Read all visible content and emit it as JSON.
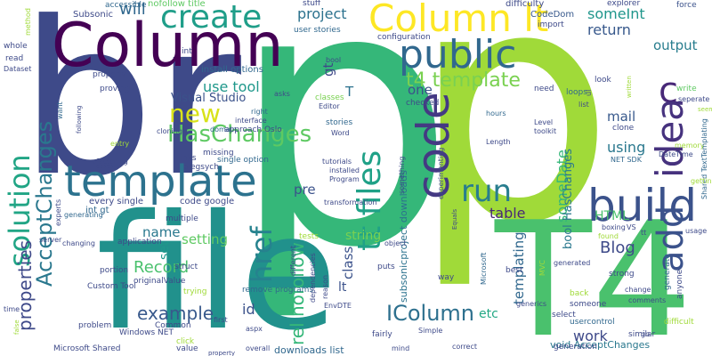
{
  "words": [
    {
      "text": "p",
      "color": "#35b779"
    },
    {
      "text": "p",
      "color": "#a0da39"
    },
    {
      "text": "br",
      "color": "#3e4a89"
    },
    {
      "text": "T4",
      "color": "#4ac16d"
    },
    {
      "text": "file",
      "color": "#21918c"
    },
    {
      "text": "Column",
      "color": "#440154"
    },
    {
      "text": "Column lt",
      "color": "#fde725"
    },
    {
      "text": "template",
      "color": "#2c728e"
    },
    {
      "text": "create",
      "color": "#1f9e89"
    },
    {
      "text": "public",
      "color": "#31688e"
    },
    {
      "text": "build",
      "color": "#3b528b"
    },
    {
      "text": "code",
      "color": "#443983"
    },
    {
      "text": "c",
      "color": "#482878"
    },
    {
      "text": "idea",
      "color": "#46327e"
    },
    {
      "text": "add",
      "color": "#3b528b"
    },
    {
      "text": "solution",
      "color": "#21a585"
    },
    {
      "text": "tt files",
      "color": "#1fa187"
    },
    {
      "text": "href",
      "color": "#26828e"
    },
    {
      "text": "run",
      "color": "#287d8e"
    },
    {
      "text": "new",
      "color": "#d8e219"
    },
    {
      "text": "t4 template",
      "color": "#7ad151"
    },
    {
      "text": "HasChanges",
      "color": "#5ec962"
    },
    {
      "text": "AcceptChanges",
      "color": "#2a788e"
    },
    {
      "text": "properties",
      "color": "#3e4989"
    },
    {
      "text": "rel nofollow",
      "color": "#35b779"
    },
    {
      "text": "IColumn",
      "color": "#2d708e"
    },
    {
      "text": "example",
      "color": "#38598c"
    },
    {
      "text": "project",
      "color": "#2c728e"
    },
    {
      "text": "will",
      "color": "#31688e"
    },
    {
      "text": "someInt",
      "color": "#1f968b"
    },
    {
      "text": "return",
      "color": "#38598c"
    },
    {
      "text": "output",
      "color": "#287d8e"
    },
    {
      "text": "gt",
      "color": "#3f4788"
    },
    {
      "text": "T",
      "color": "#2c728e"
    },
    {
      "text": "one",
      "color": "#3b528b"
    },
    {
      "text": "mail",
      "color": "#38598c"
    },
    {
      "text": "someDate",
      "color": "#35b779"
    },
    {
      "text": "using",
      "color": "#2a788e"
    },
    {
      "text": "use tool",
      "color": "#1f988b"
    },
    {
      "text": "Visual Studio",
      "color": "#3b528b"
    },
    {
      "text": "table",
      "color": "#482878"
    },
    {
      "text": "name",
      "color": "#2a788e"
    },
    {
      "text": "HTML",
      "color": "#4ac16d"
    },
    {
      "text": "bool HasChanges",
      "color": "#2a788e"
    },
    {
      "text": "Blog",
      "color": "#3e4a89"
    },
    {
      "text": "templating",
      "color": "#31688e"
    },
    {
      "text": "work",
      "color": "#3e4989"
    },
    {
      "text": "etc",
      "color": "#22a884"
    },
    {
      "text": "setting",
      "color": "#5ec962"
    },
    {
      "text": "Record",
      "color": "#4ac16d"
    },
    {
      "text": "id",
      "color": "#3b528b"
    },
    {
      "text": "class",
      "color": "#3b528b"
    },
    {
      "text": "lt",
      "color": "#3b528b"
    },
    {
      "text": "string",
      "color": "#7ad151"
    },
    {
      "text": "pre",
      "color": "#3b528b"
    },
    {
      "text": "set",
      "color": "#1f988b"
    },
    {
      "text": "void AcceptChanges",
      "color": "#2a788e"
    },
    {
      "text": "downloads list",
      "color": "#31688e"
    },
    {
      "text": "subsonicproject downloads",
      "color": "#2c728e"
    },
    {
      "text": "Subsonic",
      "color": "#3e4a89"
    },
    {
      "text": "accessible",
      "color": "#31688e"
    },
    {
      "text": "nofollow title",
      "color": "#5ec962"
    },
    {
      "text": "difficulty",
      "color": "#3e4a89"
    },
    {
      "text": "CodeDom",
      "color": "#38598c"
    },
    {
      "text": "explorer",
      "color": "#3e4a89"
    },
    {
      "text": "force",
      "color": "#3b528b"
    },
    {
      "text": "stuff",
      "color": "#3e4a89"
    },
    {
      "text": "user stories",
      "color": "#31688e"
    },
    {
      "text": "configuration",
      "color": "#3e4a89"
    },
    {
      "text": "import",
      "color": "#3e4a89"
    },
    {
      "text": "install options",
      "color": "#31688e"
    },
    {
      "text": "int",
      "color": "#3e4a89"
    },
    {
      "text": "bool",
      "color": "#3e4a89"
    },
    {
      "text": "properly",
      "color": "#3e4a89"
    },
    {
      "text": "proving",
      "color": "#3e4a89"
    },
    {
      "text": "loops",
      "color": "#31688e"
    },
    {
      "text": "need",
      "color": "#3e4a89"
    },
    {
      "text": "asks",
      "color": "#3e4a89"
    },
    {
      "text": "classes",
      "color": "#7ad151"
    },
    {
      "text": "right",
      "color": "#31688e"
    },
    {
      "text": "Editor",
      "color": "#3e4a89"
    },
    {
      "text": "checked",
      "color": "#3e4a89"
    },
    {
      "text": "hours",
      "color": "#31688e"
    },
    {
      "text": "Level",
      "color": "#3e4a89"
    },
    {
      "text": "toolkit",
      "color": "#3e4a89"
    },
    {
      "text": "Length",
      "color": "#3e4a89"
    },
    {
      "text": "clone",
      "color": "#3e4a89"
    },
    {
      "text": "interface",
      "color": "#3e4a89"
    },
    {
      "text": "domain",
      "color": "#31688e"
    },
    {
      "text": "approach Oslo",
      "color": "#3e4a89"
    },
    {
      "text": "stories",
      "color": "#31688e"
    },
    {
      "text": "Word",
      "color": "#3e4a89"
    },
    {
      "text": "missing",
      "color": "#3e4a89"
    },
    {
      "text": "single option",
      "color": "#31688e"
    },
    {
      "text": "links",
      "color": "#3e4a89"
    },
    {
      "text": "olegsych",
      "color": "#3e4a89"
    },
    {
      "text": "tutorials",
      "color": "#3e4a89"
    },
    {
      "text": "installed",
      "color": "#3e4a89"
    },
    {
      "text": "Program",
      "color": "#3e4a89"
    },
    {
      "text": "transformation",
      "color": "#3e4a89"
    },
    {
      "text": "NET SDK",
      "color": "#31688e"
    },
    {
      "text": "DateTime",
      "color": "#3e4a89"
    },
    {
      "text": "memory",
      "color": "#a0da39"
    },
    {
      "text": "write",
      "color": "#5ec962"
    },
    {
      "text": "seperate",
      "color": "#3e4a89"
    },
    {
      "text": "Shared TextTemplating",
      "color": "#31688e"
    },
    {
      "text": "getting",
      "color": "#a0da39"
    },
    {
      "text": "every single",
      "color": "#3e4a89"
    },
    {
      "text": "code google",
      "color": "#3e4a89"
    },
    {
      "text": "int gt",
      "color": "#31688e"
    },
    {
      "text": "multiple",
      "color": "#3e4a89"
    },
    {
      "text": "application",
      "color": "#3e4a89"
    },
    {
      "text": "tests",
      "color": "#a0da39"
    },
    {
      "text": "object",
      "color": "#3e4a89"
    },
    {
      "text": "struct",
      "color": "#3e4a89"
    },
    {
      "text": "originalValue",
      "color": "#3e4a89"
    },
    {
      "text": "portion",
      "color": "#3e4a89"
    },
    {
      "text": "Custom Tool",
      "color": "#3e4a89"
    },
    {
      "text": "trying",
      "color": "#a0da39"
    },
    {
      "text": "remove programs",
      "color": "#31688e"
    },
    {
      "text": "different",
      "color": "#3e4a89"
    },
    {
      "text": "dependencies",
      "color": "#3e4a89"
    },
    {
      "text": "reason",
      "color": "#3e4a89"
    },
    {
      "text": "EnvDTE",
      "color": "#3e4a89"
    },
    {
      "text": "aspx",
      "color": "#3e4a89"
    },
    {
      "text": "first",
      "color": "#3e4a89"
    },
    {
      "text": "Windows NET",
      "color": "#3e4a89"
    },
    {
      "text": "Common",
      "color": "#3e4a89"
    },
    {
      "text": "problem",
      "color": "#3e4a89"
    },
    {
      "text": "Microsoft Shared",
      "color": "#3e4a89"
    },
    {
      "text": "value",
      "color": "#3e4a89"
    },
    {
      "text": "overall",
      "color": "#3e4a89"
    },
    {
      "text": "fairly",
      "color": "#3e4a89"
    },
    {
      "text": "puts",
      "color": "#3e4a89"
    },
    {
      "text": "way",
      "color": "#3e4a89"
    },
    {
      "text": "correct",
      "color": "#3e4a89"
    },
    {
      "text": "Simple",
      "color": "#3e4a89"
    },
    {
      "text": "best",
      "color": "#3e4a89"
    },
    {
      "text": "generation",
      "color": "#3e4a89"
    },
    {
      "text": "MVC",
      "color": "#a0da39"
    },
    {
      "text": "back",
      "color": "#a0da39"
    },
    {
      "text": "someone",
      "color": "#3e4a89"
    },
    {
      "text": "select",
      "color": "#3e4a89"
    },
    {
      "text": "usercontrol",
      "color": "#31688e"
    },
    {
      "text": "similar",
      "color": "#3e4a89"
    },
    {
      "text": "strong",
      "color": "#3e4a89"
    },
    {
      "text": "generated",
      "color": "#3e4a89"
    },
    {
      "text": "change",
      "color": "#3e4a89"
    },
    {
      "text": "comments",
      "color": "#3e4a89"
    },
    {
      "text": "usage",
      "color": "#3e4a89"
    },
    {
      "text": "anyone",
      "color": "#3e4a89"
    },
    {
      "text": "difficult",
      "color": "#a0da39"
    },
    {
      "text": "generate",
      "color": "#31688e"
    },
    {
      "text": "boxing",
      "color": "#3e4a89"
    },
    {
      "text": "VS",
      "color": "#3e4a89"
    },
    {
      "text": "found",
      "color": "#a0da39"
    },
    {
      "text": "tt",
      "color": "#3e4a89"
    },
    {
      "text": "Microsoft",
      "color": "#31688e"
    },
    {
      "text": "experimenting",
      "color": "#3e4a89"
    },
    {
      "text": "Equals",
      "color": "#3e4a89"
    },
    {
      "text": "something",
      "color": "#3e4a89"
    },
    {
      "text": "generics",
      "color": "#3e4a89"
    },
    {
      "text": "mind",
      "color": "#3e4a89"
    },
    {
      "text": "click",
      "color": "#a0da39"
    },
    {
      "text": "property",
      "color": "#3e4a89"
    },
    {
      "text": "time",
      "color": "#3e4a89"
    },
    {
      "text": "false",
      "color": "#a0da39"
    },
    {
      "text": "server",
      "color": "#3e4a89"
    },
    {
      "text": "experts",
      "color": "#3e4a89"
    },
    {
      "text": "generating",
      "color": "#31688e"
    },
    {
      "text": "changing",
      "color": "#3e4a89"
    },
    {
      "text": "entry",
      "color": "#a0da39"
    },
    {
      "text": "cloning",
      "color": "#3e4a89"
    },
    {
      "text": "refactoring",
      "color": "#3e4a89"
    },
    {
      "text": "cases",
      "color": "#3e4a89"
    },
    {
      "text": "want",
      "color": "#31688e"
    },
    {
      "text": "following",
      "color": "#3e4a89"
    },
    {
      "text": "whole",
      "color": "#3e4a89"
    },
    {
      "text": "read",
      "color": "#3e4a89"
    },
    {
      "text": "Dataset",
      "color": "#3e4a89"
    },
    {
      "text": "method",
      "color": "#a0da39"
    },
    {
      "text": "go",
      "color": "#3e4a89"
    },
    {
      "text": "look",
      "color": "#3e4a89"
    },
    {
      "text": "list",
      "color": "#3e4a89"
    },
    {
      "text": "ul",
      "color": "#3e4a89"
    },
    {
      "text": "written",
      "color": "#a0da39"
    },
    {
      "text": "seems",
      "color": "#a0da39"
    }
  ]
}
